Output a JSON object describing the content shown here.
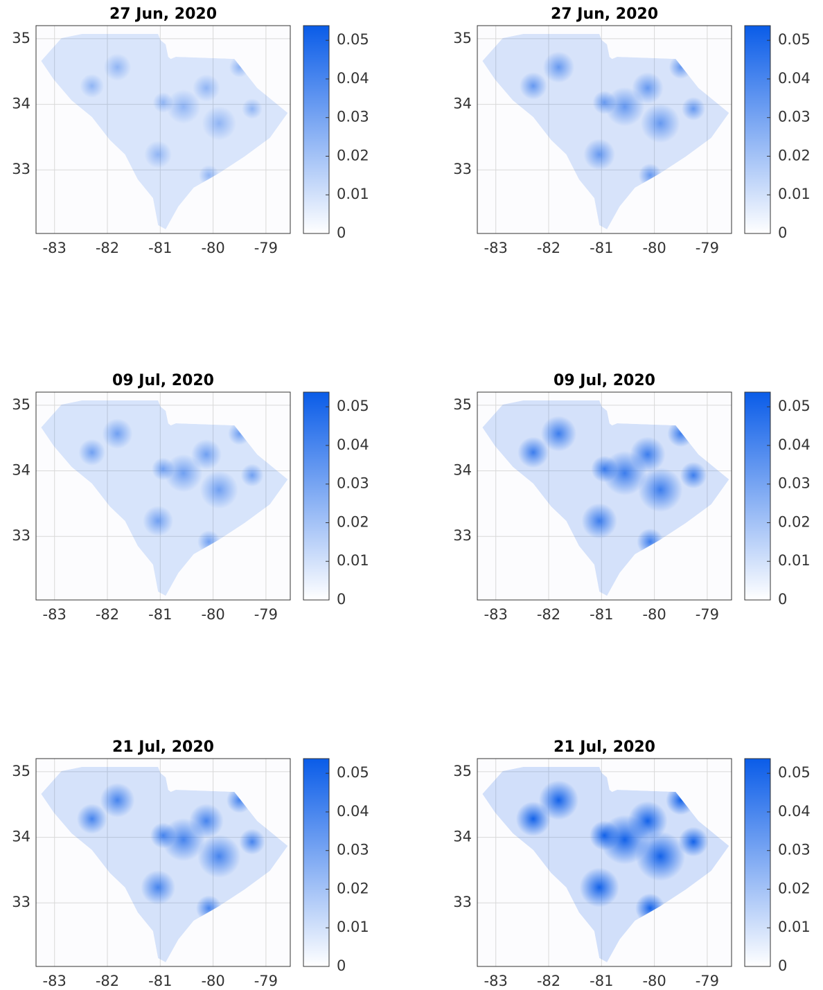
{
  "chart_data": [
    {
      "type": "heatmap",
      "title": "27 Jun, 2020",
      "xlim": [
        -83.35,
        -78.54
      ],
      "ylim": [
        32.03,
        35.2
      ],
      "xticks": [
        -83,
        -82,
        -81,
        -80,
        -79
      ],
      "yticks": [
        33,
        34,
        35
      ],
      "grid": true,
      "colorbar": {
        "clim": [
          0,
          0.0538
        ],
        "ticks": [
          0,
          0.01,
          0.02,
          0.03,
          0.04,
          0.05
        ],
        "colors": [
          "#ffffff",
          "#0a5ce8"
        ]
      }
    },
    {
      "type": "heatmap",
      "title": "27 Jun, 2020",
      "xlim": [
        -83.35,
        -78.54
      ],
      "ylim": [
        32.03,
        35.2
      ],
      "xticks": [
        -83,
        -82,
        -81,
        -80,
        -79
      ],
      "yticks": [
        33,
        34,
        35
      ],
      "grid": true,
      "colorbar": {
        "clim": [
          0,
          0.0538
        ],
        "ticks": [
          0,
          0.01,
          0.02,
          0.03,
          0.04,
          0.05
        ],
        "colors": [
          "#ffffff",
          "#0a5ce8"
        ]
      }
    },
    {
      "type": "heatmap",
      "title": "09 Jul, 2020",
      "xlim": [
        -83.35,
        -78.54
      ],
      "ylim": [
        32.03,
        35.2
      ],
      "xticks": [
        -83,
        -82,
        -81,
        -80,
        -79
      ],
      "yticks": [
        33,
        34,
        35
      ],
      "grid": true,
      "colorbar": {
        "clim": [
          0,
          0.0538
        ],
        "ticks": [
          0,
          0.01,
          0.02,
          0.03,
          0.04,
          0.05
        ],
        "colors": [
          "#ffffff",
          "#0a5ce8"
        ]
      }
    },
    {
      "type": "heatmap",
      "title": "09 Jul, 2020",
      "xlim": [
        -83.35,
        -78.54
      ],
      "ylim": [
        32.03,
        35.2
      ],
      "xticks": [
        -83,
        -82,
        -81,
        -80,
        -79
      ],
      "yticks": [
        33,
        34,
        35
      ],
      "grid": true,
      "colorbar": {
        "clim": [
          0,
          0.0538
        ],
        "ticks": [
          0,
          0.01,
          0.02,
          0.03,
          0.04,
          0.05
        ],
        "colors": [
          "#ffffff",
          "#0a5ce8"
        ]
      }
    },
    {
      "type": "heatmap",
      "title": "21 Jul, 2020",
      "xlim": [
        -83.35,
        -78.54
      ],
      "ylim": [
        32.03,
        35.2
      ],
      "xticks": [
        -83,
        -82,
        -81,
        -80,
        -79
      ],
      "yticks": [
        33,
        34,
        35
      ],
      "grid": true,
      "colorbar": {
        "clim": [
          0,
          0.0538
        ],
        "ticks": [
          0,
          0.01,
          0.02,
          0.03,
          0.04,
          0.05
        ],
        "colors": [
          "#ffffff",
          "#0a5ce8"
        ]
      }
    },
    {
      "type": "heatmap",
      "title": "21 Jul, 2020",
      "xlim": [
        -83.35,
        -78.54
      ],
      "ylim": [
        32.03,
        35.2
      ],
      "xticks": [
        -83,
        -82,
        -81,
        -80,
        -79
      ],
      "yticks": [
        33,
        34,
        35
      ],
      "grid": true,
      "colorbar": {
        "clim": [
          0,
          0.0538
        ],
        "ticks": [
          0,
          0.01,
          0.02,
          0.03,
          0.04,
          0.05
        ],
        "colors": [
          "#ffffff",
          "#0a5ce8"
        ]
      }
    }
  ]
}
